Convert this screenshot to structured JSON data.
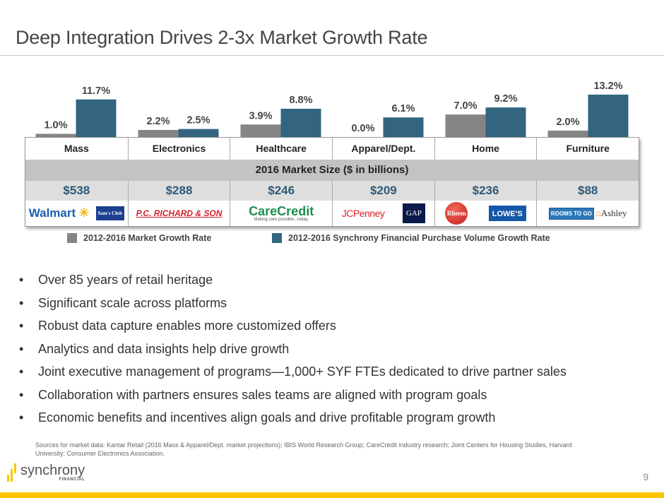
{
  "title": "Deep Integration Drives 2-3x Market Growth Rate",
  "chart_data": {
    "type": "bar",
    "categories": [
      "Mass",
      "Electronics",
      "Healthcare",
      "Apparel/Dept.",
      "Home",
      "Furniture"
    ],
    "series": [
      {
        "name": "2012-2016 Market Growth Rate",
        "values": [
          1.0,
          2.2,
          3.9,
          0.0,
          7.0,
          2.0
        ],
        "color": "#858585"
      },
      {
        "name": "2012-2016 Synchrony Financial Purchase Volume Growth Rate",
        "values": [
          11.7,
          2.5,
          8.8,
          6.1,
          9.2,
          13.2
        ],
        "color": "#336580"
      }
    ],
    "data_labels": [
      [
        "1.0%",
        "2.2%",
        "3.9%",
        "0.0%",
        "7.0%",
        "2.0%"
      ],
      [
        "11.7%",
        "2.5%",
        "8.8%",
        "6.1%",
        "9.2%",
        "13.2%"
      ]
    ],
    "legend": "bottom",
    "grid": false
  },
  "table": {
    "market_size_header": "2016 Market Size ($ in billions)",
    "market_sizes": [
      "$538",
      "$288",
      "$246",
      "$209",
      "$236",
      "$88"
    ],
    "partner_logos": [
      [
        "Walmart",
        "Sam's Club"
      ],
      [
        "P.C. RICHARD & SON"
      ],
      [
        "CareCredit",
        "Making care possible...today."
      ],
      [
        "JCPenney",
        "GAP"
      ],
      [
        "Rheem",
        "LOWE'S"
      ],
      [
        "ROOMS TO GO",
        "Ashley"
      ]
    ]
  },
  "bullets": [
    "Over 85 years of retail heritage",
    "Significant scale across platforms",
    "Robust data capture enables more customized offers",
    "Analytics and data insights help drive growth",
    "Joint executive management of programs—1,000+ SYF FTEs dedicated to drive partner sales",
    "Collaboration with partners ensures sales teams are aligned with program goals",
    "Economic benefits and incentives align goals and drive profitable program growth"
  ],
  "sources": "Sources for market data: Kantar Retail (2016 Mass & Apparel/Dept. market projections); IBIS World Research Group; CareCredit industry research; Joint Centers for Housing Studies, Harvard University; Consumer Electronics Association.",
  "brand": {
    "name": "synchrony",
    "sub": "FINANCIAL",
    "accent": "#fbc600"
  },
  "page_number": "9"
}
